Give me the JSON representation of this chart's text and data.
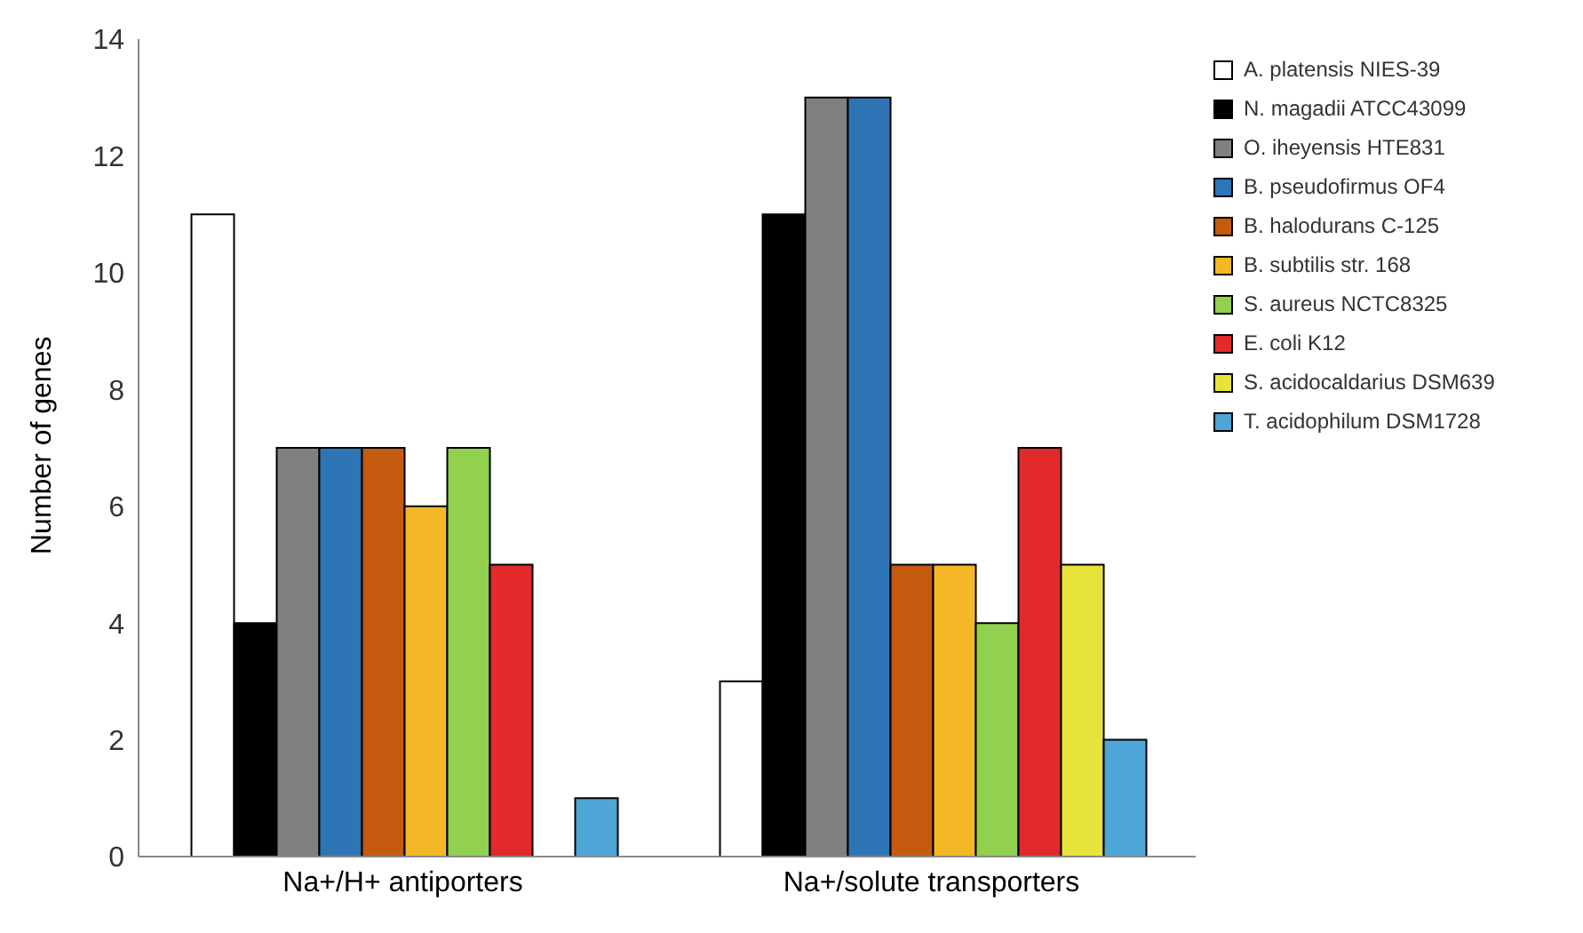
{
  "chart_data": {
    "type": "bar",
    "ylabel": "Number of genes",
    "categories": [
      "Na+/H+ antiporters",
      "Na+/solute transporters"
    ],
    "series": [
      {
        "name": "A. platensis NIES-39",
        "color": "#ffffff",
        "values": [
          11,
          3
        ]
      },
      {
        "name": "N. magadii ATCC43099",
        "color": "#000000",
        "values": [
          4,
          11
        ]
      },
      {
        "name": "O. iheyensis HTE831",
        "color": "#808080",
        "values": [
          7,
          13
        ]
      },
      {
        "name": "B. pseudofirmus OF4",
        "color": "#2e75b6",
        "values": [
          7,
          13
        ]
      },
      {
        "name": "B. halodurans C-125",
        "color": "#c55a11",
        "values": [
          7,
          5
        ]
      },
      {
        "name": "B. subtilis str. 168",
        "color": "#f4b826",
        "values": [
          6,
          5
        ]
      },
      {
        "name": "S. aureus NCTC8325",
        "color": "#92d050",
        "values": [
          7,
          4
        ]
      },
      {
        "name": "E. coli K12",
        "color": "#e32a2a",
        "values": [
          5,
          7
        ]
      },
      {
        "name": "S. acidocaldarius DSM639",
        "color": "#e8e33a",
        "values": [
          0,
          5
        ]
      },
      {
        "name": "T. acidophilum DSM1728",
        "color": "#4ea6d6",
        "values": [
          1,
          2
        ]
      }
    ],
    "ylim": [
      0,
      14
    ],
    "yticks": [
      0,
      2,
      4,
      6,
      8,
      10,
      12,
      14
    ],
    "grid": false,
    "legend": "right"
  }
}
